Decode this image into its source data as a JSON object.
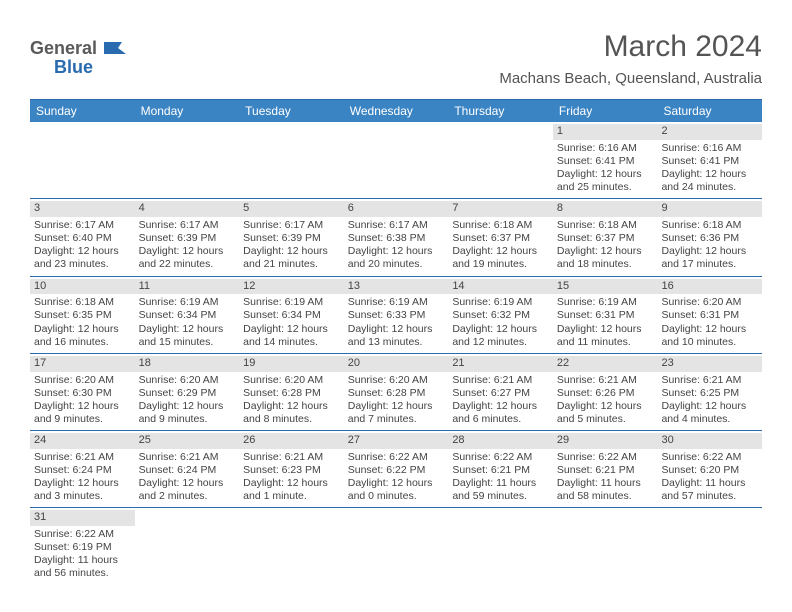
{
  "logo": {
    "part1": "General",
    "part2": "Blue"
  },
  "title": "March 2024",
  "location": "Machans Beach, Queensland, Australia",
  "header_color": "#3b84c4",
  "border_color": "#2a6bb0",
  "day_band_color": "#e4e4e4",
  "text_color": "#444444",
  "dayheads": [
    "Sunday",
    "Monday",
    "Tuesday",
    "Wednesday",
    "Thursday",
    "Friday",
    "Saturday"
  ],
  "weeks": [
    [
      null,
      null,
      null,
      null,
      null,
      {
        "n": "1",
        "sr": "Sunrise: 6:16 AM",
        "ss": "Sunset: 6:41 PM",
        "d1": "Daylight: 12 hours",
        "d2": "and 25 minutes."
      },
      {
        "n": "2",
        "sr": "Sunrise: 6:16 AM",
        "ss": "Sunset: 6:41 PM",
        "d1": "Daylight: 12 hours",
        "d2": "and 24 minutes."
      }
    ],
    [
      {
        "n": "3",
        "sr": "Sunrise: 6:17 AM",
        "ss": "Sunset: 6:40 PM",
        "d1": "Daylight: 12 hours",
        "d2": "and 23 minutes."
      },
      {
        "n": "4",
        "sr": "Sunrise: 6:17 AM",
        "ss": "Sunset: 6:39 PM",
        "d1": "Daylight: 12 hours",
        "d2": "and 22 minutes."
      },
      {
        "n": "5",
        "sr": "Sunrise: 6:17 AM",
        "ss": "Sunset: 6:39 PM",
        "d1": "Daylight: 12 hours",
        "d2": "and 21 minutes."
      },
      {
        "n": "6",
        "sr": "Sunrise: 6:17 AM",
        "ss": "Sunset: 6:38 PM",
        "d1": "Daylight: 12 hours",
        "d2": "and 20 minutes."
      },
      {
        "n": "7",
        "sr": "Sunrise: 6:18 AM",
        "ss": "Sunset: 6:37 PM",
        "d1": "Daylight: 12 hours",
        "d2": "and 19 minutes."
      },
      {
        "n": "8",
        "sr": "Sunrise: 6:18 AM",
        "ss": "Sunset: 6:37 PM",
        "d1": "Daylight: 12 hours",
        "d2": "and 18 minutes."
      },
      {
        "n": "9",
        "sr": "Sunrise: 6:18 AM",
        "ss": "Sunset: 6:36 PM",
        "d1": "Daylight: 12 hours",
        "d2": "and 17 minutes."
      }
    ],
    [
      {
        "n": "10",
        "sr": "Sunrise: 6:18 AM",
        "ss": "Sunset: 6:35 PM",
        "d1": "Daylight: 12 hours",
        "d2": "and 16 minutes."
      },
      {
        "n": "11",
        "sr": "Sunrise: 6:19 AM",
        "ss": "Sunset: 6:34 PM",
        "d1": "Daylight: 12 hours",
        "d2": "and 15 minutes."
      },
      {
        "n": "12",
        "sr": "Sunrise: 6:19 AM",
        "ss": "Sunset: 6:34 PM",
        "d1": "Daylight: 12 hours",
        "d2": "and 14 minutes."
      },
      {
        "n": "13",
        "sr": "Sunrise: 6:19 AM",
        "ss": "Sunset: 6:33 PM",
        "d1": "Daylight: 12 hours",
        "d2": "and 13 minutes."
      },
      {
        "n": "14",
        "sr": "Sunrise: 6:19 AM",
        "ss": "Sunset: 6:32 PM",
        "d1": "Daylight: 12 hours",
        "d2": "and 12 minutes."
      },
      {
        "n": "15",
        "sr": "Sunrise: 6:19 AM",
        "ss": "Sunset: 6:31 PM",
        "d1": "Daylight: 12 hours",
        "d2": "and 11 minutes."
      },
      {
        "n": "16",
        "sr": "Sunrise: 6:20 AM",
        "ss": "Sunset: 6:31 PM",
        "d1": "Daylight: 12 hours",
        "d2": "and 10 minutes."
      }
    ],
    [
      {
        "n": "17",
        "sr": "Sunrise: 6:20 AM",
        "ss": "Sunset: 6:30 PM",
        "d1": "Daylight: 12 hours",
        "d2": "and 9 minutes."
      },
      {
        "n": "18",
        "sr": "Sunrise: 6:20 AM",
        "ss": "Sunset: 6:29 PM",
        "d1": "Daylight: 12 hours",
        "d2": "and 9 minutes."
      },
      {
        "n": "19",
        "sr": "Sunrise: 6:20 AM",
        "ss": "Sunset: 6:28 PM",
        "d1": "Daylight: 12 hours",
        "d2": "and 8 minutes."
      },
      {
        "n": "20",
        "sr": "Sunrise: 6:20 AM",
        "ss": "Sunset: 6:28 PM",
        "d1": "Daylight: 12 hours",
        "d2": "and 7 minutes."
      },
      {
        "n": "21",
        "sr": "Sunrise: 6:21 AM",
        "ss": "Sunset: 6:27 PM",
        "d1": "Daylight: 12 hours",
        "d2": "and 6 minutes."
      },
      {
        "n": "22",
        "sr": "Sunrise: 6:21 AM",
        "ss": "Sunset: 6:26 PM",
        "d1": "Daylight: 12 hours",
        "d2": "and 5 minutes."
      },
      {
        "n": "23",
        "sr": "Sunrise: 6:21 AM",
        "ss": "Sunset: 6:25 PM",
        "d1": "Daylight: 12 hours",
        "d2": "and 4 minutes."
      }
    ],
    [
      {
        "n": "24",
        "sr": "Sunrise: 6:21 AM",
        "ss": "Sunset: 6:24 PM",
        "d1": "Daylight: 12 hours",
        "d2": "and 3 minutes."
      },
      {
        "n": "25",
        "sr": "Sunrise: 6:21 AM",
        "ss": "Sunset: 6:24 PM",
        "d1": "Daylight: 12 hours",
        "d2": "and 2 minutes."
      },
      {
        "n": "26",
        "sr": "Sunrise: 6:21 AM",
        "ss": "Sunset: 6:23 PM",
        "d1": "Daylight: 12 hours",
        "d2": "and 1 minute."
      },
      {
        "n": "27",
        "sr": "Sunrise: 6:22 AM",
        "ss": "Sunset: 6:22 PM",
        "d1": "Daylight: 12 hours",
        "d2": "and 0 minutes."
      },
      {
        "n": "28",
        "sr": "Sunrise: 6:22 AM",
        "ss": "Sunset: 6:21 PM",
        "d1": "Daylight: 11 hours",
        "d2": "and 59 minutes."
      },
      {
        "n": "29",
        "sr": "Sunrise: 6:22 AM",
        "ss": "Sunset: 6:21 PM",
        "d1": "Daylight: 11 hours",
        "d2": "and 58 minutes."
      },
      {
        "n": "30",
        "sr": "Sunrise: 6:22 AM",
        "ss": "Sunset: 6:20 PM",
        "d1": "Daylight: 11 hours",
        "d2": "and 57 minutes."
      }
    ],
    [
      {
        "n": "31",
        "sr": "Sunrise: 6:22 AM",
        "ss": "Sunset: 6:19 PM",
        "d1": "Daylight: 11 hours",
        "d2": "and 56 minutes."
      },
      null,
      null,
      null,
      null,
      null,
      null
    ]
  ]
}
